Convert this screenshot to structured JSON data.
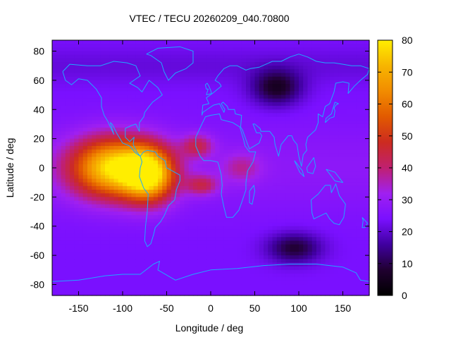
{
  "chart_data": {
    "type": "heatmap",
    "title": "VTEC / TECU 20260209_040.70800",
    "xlabel": "Longitude / deg",
    "ylabel": "Latitude / deg",
    "xlim": [
      -180,
      180
    ],
    "ylim": [
      -87.5,
      87.5
    ],
    "x_ticks": [
      -150,
      -100,
      -50,
      0,
      50,
      100,
      150
    ],
    "y_ticks": [
      -80,
      -60,
      -40,
      -20,
      0,
      20,
      40,
      60,
      80
    ],
    "colorbar": {
      "range": [
        0,
        80
      ],
      "ticks": [
        0,
        10,
        20,
        30,
        40,
        50,
        60,
        70,
        80
      ],
      "palette": "black-blue-purple-red-orange-yellow",
      "stops": [
        "#000000",
        "#200030",
        "#4000a0",
        "#7a10ff",
        "#a020f0",
        "#c02070",
        "#cc2b20",
        "#e25a00",
        "#f28c00",
        "#f7b500",
        "#ffee00"
      ]
    },
    "grid_resolution_deg": [
      5,
      2.5
    ],
    "grid": false,
    "legend": "colorbar-right",
    "overlay": "continent-coastlines",
    "coastline_color": "#1fa8ff",
    "features": [
      {
        "name": "equatorial-anomaly-peak",
        "lon": -110,
        "lat": 0,
        "value": 75,
        "sigma_lon": 48,
        "sigma_lat": 20
      },
      {
        "name": "south-america-crest",
        "lon": -70,
        "lat": -5,
        "value": 68,
        "sigma_lon": 28,
        "sigma_lat": 18
      },
      {
        "name": "atlantic-extension-north",
        "lon": -15,
        "lat": 15,
        "value": 40,
        "sigma_lon": 18,
        "sigma_lat": 8
      },
      {
        "name": "atlantic-extension-south",
        "lon": -10,
        "lat": -12,
        "value": 40,
        "sigma_lon": 18,
        "sigma_lat": 7
      },
      {
        "name": "africa-west-tail",
        "lon": 35,
        "lat": 0,
        "value": 34,
        "sigma_lon": 22,
        "sigma_lat": 10
      },
      {
        "name": "north-asia-minimum",
        "lon": 75,
        "lat": 55,
        "value": 6,
        "sigma_lon": 28,
        "sigma_lat": 12
      },
      {
        "name": "south-indian-minimum",
        "lon": 95,
        "lat": -55,
        "value": 8,
        "sigma_lon": 30,
        "sigma_lat": 10
      }
    ],
    "background_value": 24
  }
}
